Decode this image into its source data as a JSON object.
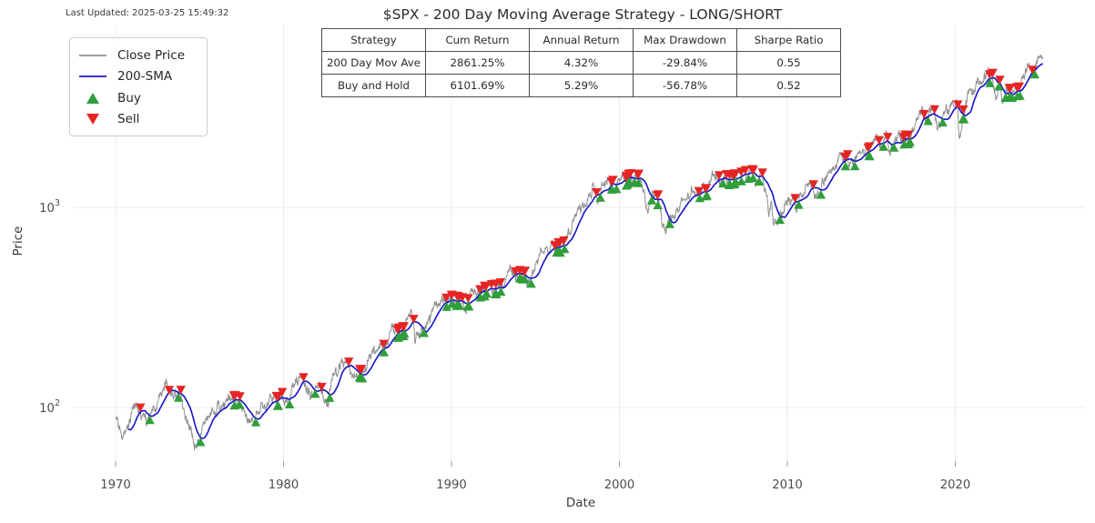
{
  "header": {
    "last_updated": "Last Updated: 2025-03-25 15:49:32"
  },
  "legend": {
    "items": [
      {
        "label": "Close Price",
        "type": "line",
        "color": "#8f8f8f"
      },
      {
        "label": "200-SMA",
        "type": "line",
        "color": "#1414c8"
      },
      {
        "label": "Buy",
        "type": "triangle-up",
        "color": "#2f9e3b"
      },
      {
        "label": "Sell",
        "type": "triangle-down",
        "color": "#e62424"
      }
    ]
  },
  "stats_table": {
    "headers": [
      "Strategy",
      "Cum Return",
      "Annual Return",
      "Max Drawdown",
      "Sharpe Ratio"
    ],
    "rows": [
      [
        "200 Day Mov Ave",
        "2861.25%",
        "4.32%",
        "-29.84%",
        "0.55"
      ],
      [
        "Buy and Hold",
        "6101.69%",
        "5.29%",
        "-56.78%",
        "0.52"
      ]
    ]
  },
  "chart_data": {
    "type": "line",
    "title": "$SPX - 200 Day Moving Average Strategy - LONG/SHORT",
    "xlabel": "Date",
    "ylabel": "Price",
    "yscale": "log",
    "grid": true,
    "xlim": [
      1967.4,
      2027.5
    ],
    "ylim": [
      52,
      7900
    ],
    "x_ticks": [
      1970,
      1980,
      1990,
      2000,
      2010,
      2020
    ],
    "y_ticks": [
      {
        "value": 100,
        "base": "10",
        "exp": "2"
      },
      {
        "value": 1000,
        "base": "10",
        "exp": "3"
      }
    ],
    "series": [
      {
        "name": "Close Price",
        "color": "#8f8f8f",
        "type": "line",
        "keypoints": [
          [
            1970,
            92
          ],
          [
            1970.45,
            70
          ],
          [
            1971,
            95
          ],
          [
            1971.35,
            104
          ],
          [
            1971.9,
            94
          ],
          [
            1972.5,
            108
          ],
          [
            1973.04,
            120
          ],
          [
            1973.5,
            104
          ],
          [
            1973.85,
            108
          ],
          [
            1974.2,
            93
          ],
          [
            1974.75,
            62
          ],
          [
            1975.05,
            76
          ],
          [
            1975.55,
            95
          ],
          [
            1976.05,
            100
          ],
          [
            1976.75,
            105
          ],
          [
            1977.5,
            99
          ],
          [
            1978.2,
            87
          ],
          [
            1978.7,
            103
          ],
          [
            1978.85,
            94
          ],
          [
            1979.3,
            102
          ],
          [
            1979.78,
            110
          ],
          [
            1980.25,
            100
          ],
          [
            1980.9,
            140
          ],
          [
            1981.3,
            132
          ],
          [
            1981.6,
            122
          ],
          [
            1982.1,
            117
          ],
          [
            1982.62,
            102
          ],
          [
            1982.92,
            140
          ],
          [
            1983.75,
            170
          ],
          [
            1984.55,
            150
          ],
          [
            1985.05,
            180
          ],
          [
            1985.9,
            207
          ],
          [
            1986.5,
            245
          ],
          [
            1986.75,
            236
          ],
          [
            1987.65,
            336
          ],
          [
            1987.82,
            225
          ],
          [
            1988.05,
            257
          ],
          [
            1988.45,
            262
          ],
          [
            1989,
            288
          ],
          [
            1989.75,
            359
          ],
          [
            1990.1,
            340
          ],
          [
            1990.5,
            368
          ],
          [
            1990.8,
            300
          ],
          [
            1991.2,
            375
          ],
          [
            1991.95,
            385
          ],
          [
            1992.3,
            412
          ],
          [
            1993,
            438
          ],
          [
            1994.1,
            482
          ],
          [
            1994.5,
            446
          ],
          [
            1995,
            465
          ],
          [
            1996,
            640
          ],
          [
            1996.55,
            670
          ],
          [
            1997.1,
            790
          ],
          [
            1997.6,
            950
          ],
          [
            1997.85,
            915
          ],
          [
            1998.5,
            1185
          ],
          [
            1998.7,
            980
          ],
          [
            1999,
            1280
          ],
          [
            1999.6,
            1330
          ],
          [
            1999.78,
            1280
          ],
          [
            2000.2,
            1527
          ],
          [
            2000.45,
            1420
          ],
          [
            2000.65,
            1520
          ],
          [
            2001,
            1320
          ],
          [
            2001.45,
            1250
          ],
          [
            2001.72,
            990
          ],
          [
            2001.95,
            1150
          ],
          [
            2002.25,
            1130
          ],
          [
            2002.76,
            776
          ],
          [
            2002.9,
            935
          ],
          [
            2003.2,
            835
          ],
          [
            2003.8,
            1060
          ],
          [
            2004.3,
            1110
          ],
          [
            2004.62,
            1095
          ],
          [
            2005.3,
            1160
          ],
          [
            2006,
            1280
          ],
          [
            2006.5,
            1260
          ],
          [
            2007.42,
            1530
          ],
          [
            2007.62,
            1450
          ],
          [
            2007.78,
            1565
          ],
          [
            2008.05,
            1370
          ],
          [
            2008.4,
            1420
          ],
          [
            2008.72,
            1160
          ],
          [
            2008.9,
            850
          ],
          [
            2009.05,
            920
          ],
          [
            2009.2,
            676
          ],
          [
            2009.6,
            980
          ],
          [
            2010.05,
            1150
          ],
          [
            2010.3,
            1217
          ],
          [
            2010.55,
            1030
          ],
          [
            2011.15,
            1330
          ],
          [
            2011.35,
            1363
          ],
          [
            2011.6,
            1180
          ],
          [
            2011.78,
            1120
          ],
          [
            2012.05,
            1310
          ],
          [
            2012.45,
            1310
          ],
          [
            2012.78,
            1460
          ],
          [
            2013.4,
            1630
          ],
          [
            2014,
            1848
          ],
          [
            2014.7,
            2010
          ],
          [
            2014.8,
            1880
          ],
          [
            2015.4,
            2120
          ],
          [
            2015.65,
            1880
          ],
          [
            2015.85,
            2090
          ],
          [
            2016.12,
            1830
          ],
          [
            2016.6,
            2170
          ],
          [
            2017.2,
            2360
          ],
          [
            2018.06,
            2872
          ],
          [
            2018.18,
            2580
          ],
          [
            2018.72,
            2930
          ],
          [
            2018.98,
            2351
          ],
          [
            2019.35,
            2920
          ],
          [
            2019.6,
            2850
          ],
          [
            2020.12,
            3386
          ],
          [
            2020.23,
            2237
          ],
          [
            2020.7,
            3420
          ],
          [
            2021,
            3760
          ],
          [
            2021.6,
            4420
          ],
          [
            2021.98,
            4796
          ],
          [
            2022.2,
            4350
          ],
          [
            2022.48,
            3700
          ],
          [
            2022.62,
            4290
          ],
          [
            2022.78,
            3577
          ],
          [
            2023.1,
            4100
          ],
          [
            2023.58,
            4580
          ],
          [
            2023.83,
            4120
          ],
          [
            2024.2,
            5120
          ],
          [
            2024.55,
            5500
          ],
          [
            2024.62,
            5190
          ],
          [
            2024.95,
            6050
          ],
          [
            2025.12,
            6144
          ],
          [
            2025.23,
            5640
          ]
        ]
      },
      {
        "name": "200-SMA",
        "color": "#1414c8",
        "type": "line",
        "derived_from": "Close Price",
        "window_days": 200
      },
      {
        "name": "Buy",
        "color": "#2f9e3b",
        "type": "scatter-triangle-up",
        "rule": "close crosses above 200-SMA"
      },
      {
        "name": "Sell",
        "color": "#e62424",
        "type": "scatter-triangle-down",
        "rule": "close crosses below 200-SMA"
      }
    ],
    "colors": {
      "grid": "#ebebee",
      "tick_label": "#4d4d4d",
      "tick_mark": "#9a9a9a",
      "axis_label": "#3a3a3a",
      "title": "#2b2b2b"
    }
  }
}
